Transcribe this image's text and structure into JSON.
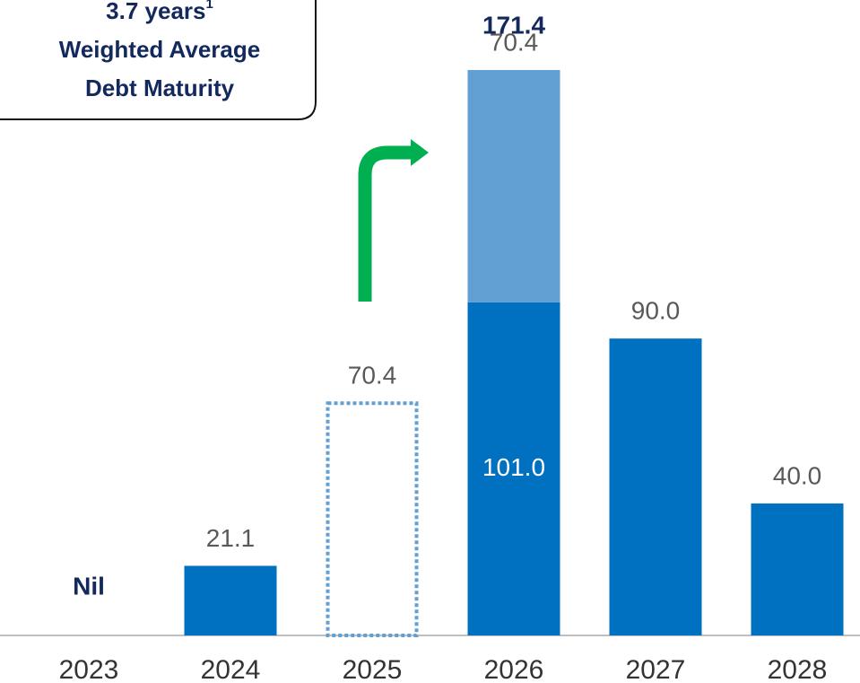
{
  "chart_data": {
    "type": "bar",
    "annotation": {
      "lines": [
        "3.7 years",
        "Weighted Average",
        "Debt Maturity"
      ],
      "footnote_mark": "1"
    },
    "categories": [
      "2023",
      "2024",
      "2025",
      "2026",
      "2027",
      "2028"
    ],
    "series": [
      {
        "color": "#0070c0",
        "values": [
          0,
          21.1,
          null,
          101.0,
          90.0,
          40.0
        ],
        "value_labels": [
          "Nil",
          "21.1",
          null,
          "101.0",
          "90.0",
          "40.0"
        ]
      },
      {
        "color": "#629fd2",
        "values": [
          null,
          null,
          null,
          70.4,
          null,
          null
        ]
      },
      {
        "color": "#629fd2",
        "style": "dotted",
        "values": [
          null,
          null,
          70.4,
          null,
          null,
          null
        ]
      }
    ],
    "totals": [
      null,
      null,
      null,
      171.4,
      null,
      null
    ],
    "ylim": [
      0,
      171.4
    ]
  }
}
